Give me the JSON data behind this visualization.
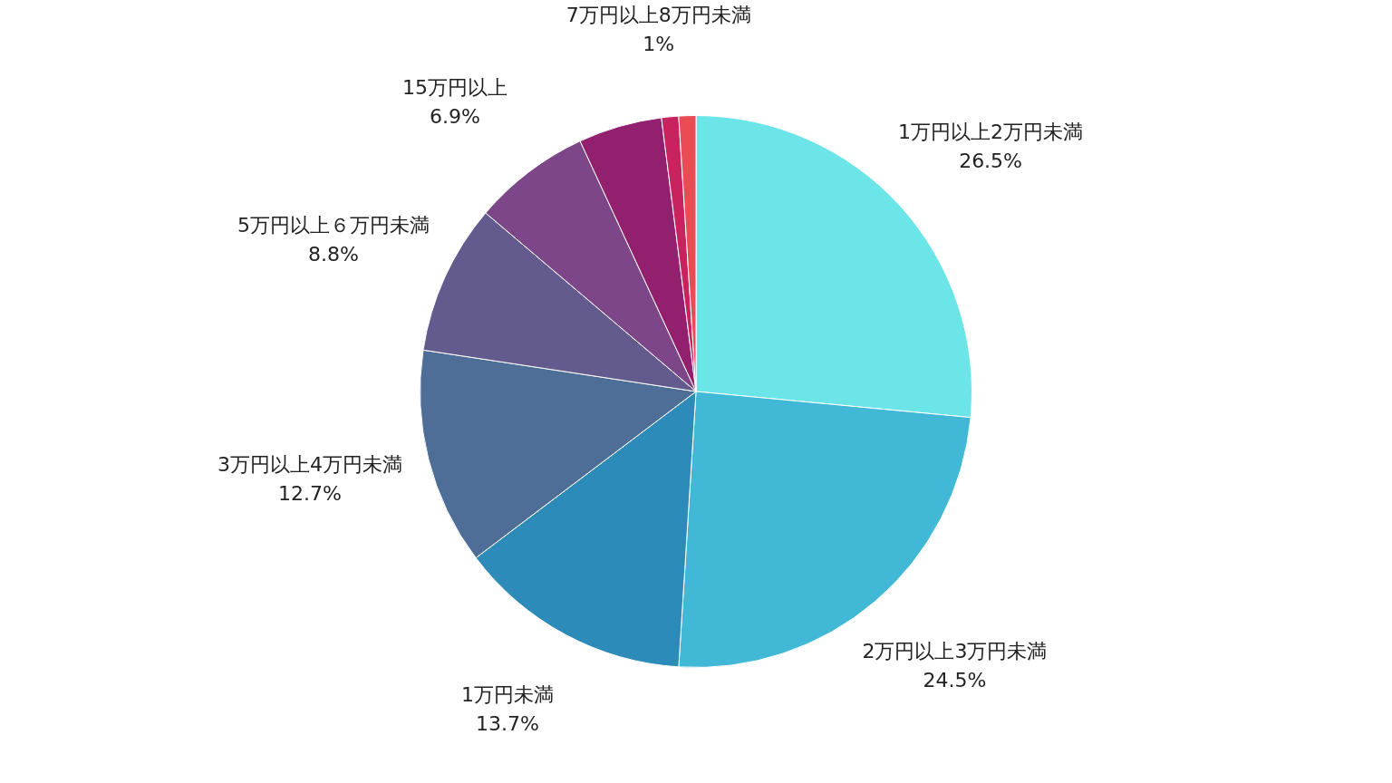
{
  "chart_data": {
    "type": "pie",
    "categories": [
      "1万円以上2万円未満",
      "2万円以上3万円未満",
      "1万円未満",
      "3万円以上4万円未満",
      "5万円以上６万円未満",
      "15万円以上",
      null,
      "7万円以上8万円未満",
      null
    ],
    "values": [
      26.5,
      24.5,
      13.7,
      12.7,
      8.8,
      6.9,
      4.9,
      1,
      1
    ],
    "value_labels": [
      "26.5%",
      "24.5%",
      "13.7%",
      "12.7%",
      "8.8%",
      "6.9%",
      null,
      "1%",
      null
    ],
    "colors": [
      "#6ce5e8",
      "#41b8d5",
      "#2d8bba",
      "#4e6e98",
      "#635a8e",
      "#7d4689",
      "#93206e",
      "#c9235f",
      "#e84c55"
    ]
  }
}
